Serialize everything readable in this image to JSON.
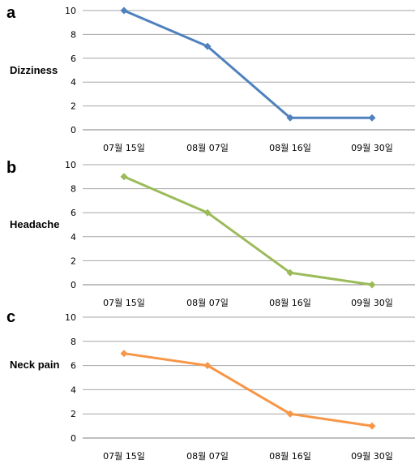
{
  "chart_data": [
    {
      "type": "line",
      "panel": "a",
      "ylabel": "Dizziness",
      "categories": [
        "07월 15일",
        "08월 07일",
        "08월 16일",
        "09월 30일"
      ],
      "yticks": [
        "0",
        "2",
        "4",
        "6",
        "8",
        "10"
      ],
      "ylim": [
        0,
        10
      ],
      "grid": true,
      "color": "#4f81bd",
      "series": [
        {
          "values": [
            10,
            7,
            1,
            1
          ]
        }
      ]
    },
    {
      "type": "line",
      "panel": "b",
      "ylabel": "Headache",
      "categories": [
        "07월 15일",
        "08월 07일",
        "08월 16일",
        "09월 30일"
      ],
      "yticks": [
        "0",
        "2",
        "4",
        "6",
        "8",
        "10"
      ],
      "ylim": [
        0,
        10
      ],
      "grid": true,
      "color": "#9bbb59",
      "series": [
        {
          "values": [
            9,
            6,
            1,
            0
          ]
        }
      ]
    },
    {
      "type": "line",
      "panel": "c",
      "ylabel": "Neck pain",
      "categories": [
        "07월 15일",
        "08월 07일",
        "08월 16일",
        "09월 30일"
      ],
      "yticks": [
        "0",
        "2",
        "4",
        "6",
        "8",
        "10"
      ],
      "ylim": [
        0,
        10
      ],
      "grid": true,
      "color": "#f79646",
      "series": [
        {
          "values": [
            7,
            6,
            2,
            1
          ]
        }
      ]
    }
  ]
}
